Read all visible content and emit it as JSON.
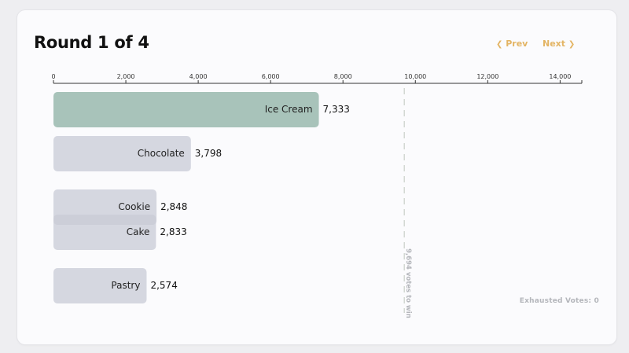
{
  "header": {
    "title": "Round 1 of 4",
    "prev_label": "Prev",
    "next_label": "Next",
    "prev_icon": "chevron-left-icon",
    "next_icon": "chevron-right-icon"
  },
  "footer": {
    "exhausted_label": "Exhausted Votes: 0"
  },
  "colors": {
    "leader": "#a8c3ba",
    "other": "#c8cbd5",
    "accent": "#e3b463",
    "threshold": "#c9cfc8"
  },
  "chart_data": {
    "type": "bar",
    "orientation": "horizontal",
    "categories": [
      "Ice Cream",
      "Chocolate",
      "Cookie",
      "Cake",
      "Pastry"
    ],
    "values": [
      7333,
      3798,
      2848,
      2833,
      2574
    ],
    "value_labels": [
      "7,333",
      "3,798",
      "2,848",
      "2,833",
      "2,574"
    ],
    "leader": "Ice Cream",
    "xlim": [
      0,
      14600
    ],
    "xticks": [
      0,
      2000,
      4000,
      6000,
      8000,
      10000,
      12000,
      14000
    ],
    "xtick_labels": [
      "0",
      "2,000",
      "4,000",
      "6,000",
      "8,000",
      "10,000",
      "12,000",
      "14,000"
    ],
    "threshold": 9694,
    "threshold_label": "9,694 votes to win",
    "axis_position": "top",
    "grid": false,
    "legend": "none"
  }
}
